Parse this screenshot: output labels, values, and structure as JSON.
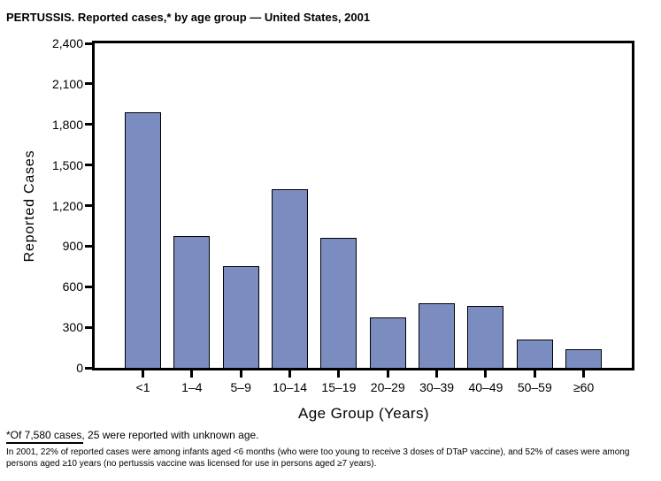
{
  "chart_data": {
    "type": "bar",
    "title": "PERTUSSIS. Reported cases,* by age group — United States, 2001",
    "xlabel": "Age Group (Years)",
    "ylabel": "Reported Cases",
    "categories": [
      "<1",
      "1–4",
      "5–9",
      "10–14",
      "15–19",
      "20–29",
      "30–39",
      "40–49",
      "50–59",
      "≥60"
    ],
    "values": [
      1890,
      975,
      755,
      1320,
      960,
      370,
      480,
      455,
      210,
      140
    ],
    "ylim": [
      0,
      2400
    ],
    "y_ticks": [
      0,
      300,
      600,
      900,
      1200,
      1500,
      1800,
      2100,
      2400
    ],
    "y_tick_labels": [
      "0",
      "300",
      "600",
      "900",
      "1,200",
      "1,500",
      "1,800",
      "2,100",
      "2,400"
    ],
    "grid": false,
    "legend": "none",
    "bar_color": "#7b8cc0",
    "bar_border_color": "#000000",
    "axis_color": "#000000"
  },
  "footnotes": {
    "note1": "*Of 7,580 cases, 25 were reported with unknown age.",
    "note2": "In 2001, 22% of reported cases were among infants aged <6 months (who were too young to receive 3 doses of DTaP vaccine), and 52% of cases were among persons aged ≥10 years (no pertussis vaccine was licensed for use in persons aged ≥7 years)."
  }
}
